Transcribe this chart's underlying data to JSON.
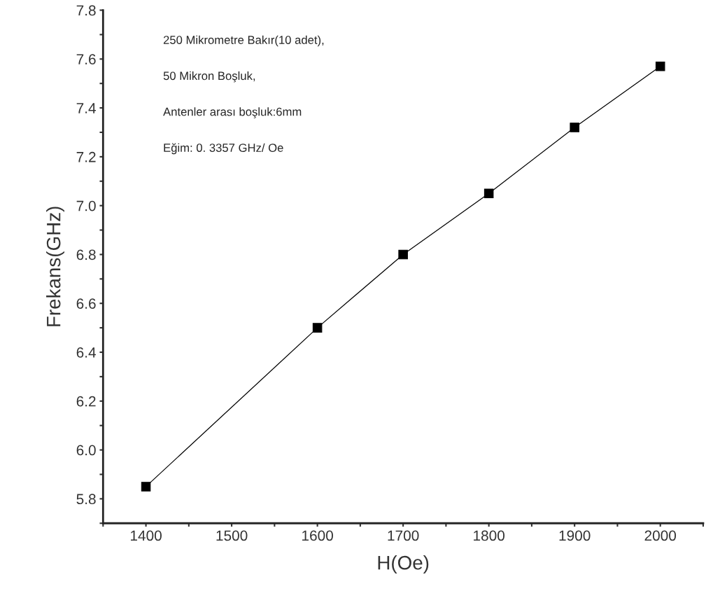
{
  "chart_data": {
    "type": "line",
    "xlabel": "H(Oe)",
    "ylabel": "Frekans(GHz)",
    "x": [
      1400,
      1600,
      1700,
      1800,
      1900,
      2000
    ],
    "series": [
      {
        "color": "#000000",
        "values": [
          5.85,
          6.5,
          6.8,
          7.05,
          7.32,
          7.57
        ]
      }
    ],
    "marker": "square",
    "line_style": "solid",
    "grid": false,
    "legend": false,
    "xlim": [
      1350,
      2050
    ],
    "xticks": [
      {
        "value": 1350,
        "label": null
      },
      1400,
      {
        "value": 1450,
        "label": null
      },
      1500,
      {
        "value": 1550,
        "label": null
      },
      1600,
      {
        "value": 1650,
        "label": null
      },
      1700,
      {
        "value": 1750,
        "label": null
      },
      1800,
      {
        "value": 1850,
        "label": null
      },
      1900,
      {
        "value": 1950,
        "label": null
      },
      2000,
      {
        "value": 2050,
        "label": null
      }
    ],
    "ylim": [
      5.7,
      7.8
    ],
    "yticks": [
      {
        "value": 5.7,
        "label": null
      },
      {
        "value": 5.8,
        "label": "5.8"
      },
      {
        "value": 5.9,
        "label": null
      },
      {
        "value": 6.0,
        "label": "6.0"
      },
      {
        "value": 6.1,
        "label": null
      },
      {
        "value": 6.2,
        "label": "6.2"
      },
      {
        "value": 6.3,
        "label": null
      },
      {
        "value": 6.4,
        "label": "6.4"
      },
      {
        "value": 6.5,
        "label": null
      },
      {
        "value": 6.6,
        "label": "6.6"
      },
      {
        "value": 6.7,
        "label": null
      },
      {
        "value": 6.8,
        "label": "6.8"
      },
      {
        "value": 6.9,
        "label": null
      },
      {
        "value": 7.0,
        "label": "7.0"
      },
      {
        "value": 7.1,
        "label": null
      },
      {
        "value": 7.2,
        "label": "7.2"
      },
      {
        "value": 7.3,
        "label": null
      },
      {
        "value": 7.4,
        "label": "7.4"
      },
      {
        "value": 7.5,
        "label": null
      },
      {
        "value": 7.6,
        "label": "7.6"
      },
      {
        "value": 7.7,
        "label": null
      },
      {
        "value": 7.8,
        "label": "7.8"
      }
    ],
    "annotations": [
      "250 Mikrometre Bakır(10 adet),",
      "50 Mikron Boşluk,",
      "Antenler arası boşluk:6mm",
      "Eğim: 0. 3357 GHz/ Oe"
    ]
  }
}
